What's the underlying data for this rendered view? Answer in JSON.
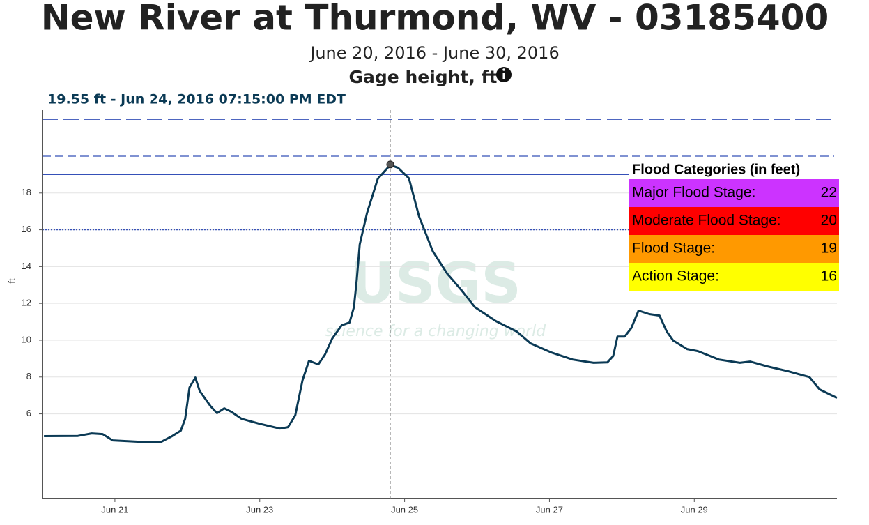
{
  "chart_data": {
    "type": "line",
    "title": "New River at Thurmond, WV - 03185400",
    "subtitle": "June 20, 2016 - June 30, 2016",
    "series_label": "Gage height, ft",
    "y_label": "ft",
    "hover_label": "19.55 ft - Jun 24, 2016 07:15:00 PM EDT",
    "hover_point": {
      "x": 4.802,
      "y": 19.55
    },
    "watermark": {
      "logo": "USGS",
      "tagline": "science for a changing world"
    },
    "color": "#0b3a55",
    "x": [
      0.02,
      0.49,
      0.68,
      0.83,
      0.97,
      1.36,
      1.64,
      1.79,
      1.91,
      1.97,
      2.03,
      2.11,
      2.17,
      2.32,
      2.41,
      2.51,
      2.61,
      2.75,
      2.99,
      3.28,
      3.39,
      3.49,
      3.59,
      3.68,
      3.81,
      3.9,
      4.0,
      4.13,
      4.24,
      4.3,
      4.34,
      4.38,
      4.48,
      4.63,
      4.8,
      4.91,
      5.06,
      5.2,
      5.39,
      5.59,
      5.78,
      5.97,
      6.26,
      6.55,
      6.74,
      7.03,
      7.32,
      7.61,
      7.8,
      7.88,
      7.94,
      8.04,
      8.13,
      8.23,
      8.38,
      8.52,
      8.62,
      8.71,
      8.9,
      9.05,
      9.34,
      9.63,
      9.77,
      10.01,
      10.3,
      10.59,
      10.73,
      10.97
    ],
    "values": [
      4.79,
      4.8,
      4.94,
      4.9,
      4.56,
      4.48,
      4.48,
      4.79,
      5.09,
      5.73,
      7.44,
      7.97,
      7.25,
      6.42,
      6.04,
      6.3,
      6.11,
      5.73,
      5.47,
      5.2,
      5.28,
      5.92,
      7.82,
      8.88,
      8.69,
      9.22,
      10.09,
      10.81,
      10.96,
      11.8,
      13.31,
      15.2,
      16.9,
      18.77,
      19.52,
      19.37,
      18.8,
      16.72,
      14.83,
      13.61,
      12.74,
      11.8,
      11.04,
      10.47,
      9.83,
      9.33,
      8.95,
      8.77,
      8.8,
      9.14,
      10.2,
      10.2,
      10.66,
      11.61,
      11.42,
      11.34,
      10.47,
      9.98,
      9.52,
      9.41,
      8.95,
      8.77,
      8.84,
      8.58,
      8.31,
      8.0,
      7.33,
      6.87
    ],
    "xlim": [
      0,
      10.97
    ],
    "xticks": [
      {
        "value": 1,
        "label": "Jun 21"
      },
      {
        "value": 3,
        "label": "Jun 23"
      },
      {
        "value": 5,
        "label": "Jun 25"
      },
      {
        "value": 7,
        "label": "Jun 27"
      },
      {
        "value": 9,
        "label": "Jun 29"
      }
    ],
    "ylim": [
      1.4,
      22.5
    ],
    "yticks": [
      6,
      8,
      10,
      12,
      14,
      16,
      18
    ],
    "grid": true,
    "flood_categories": {
      "title": "Flood Categories (in feet)",
      "rows": [
        {
          "name": "Major Flood Stage:",
          "value": 22,
          "color": "#cc33ff",
          "line": "long-dash"
        },
        {
          "name": "Moderate Flood Stage:",
          "value": 20,
          "color": "#ff0000",
          "line": "dash"
        },
        {
          "name": "Flood Stage:",
          "value": 19,
          "color": "#ff9900",
          "line": "solid"
        },
        {
          "name": "Action Stage:",
          "value": 16,
          "color": "#ffff00",
          "line": "dot"
        }
      ]
    }
  }
}
